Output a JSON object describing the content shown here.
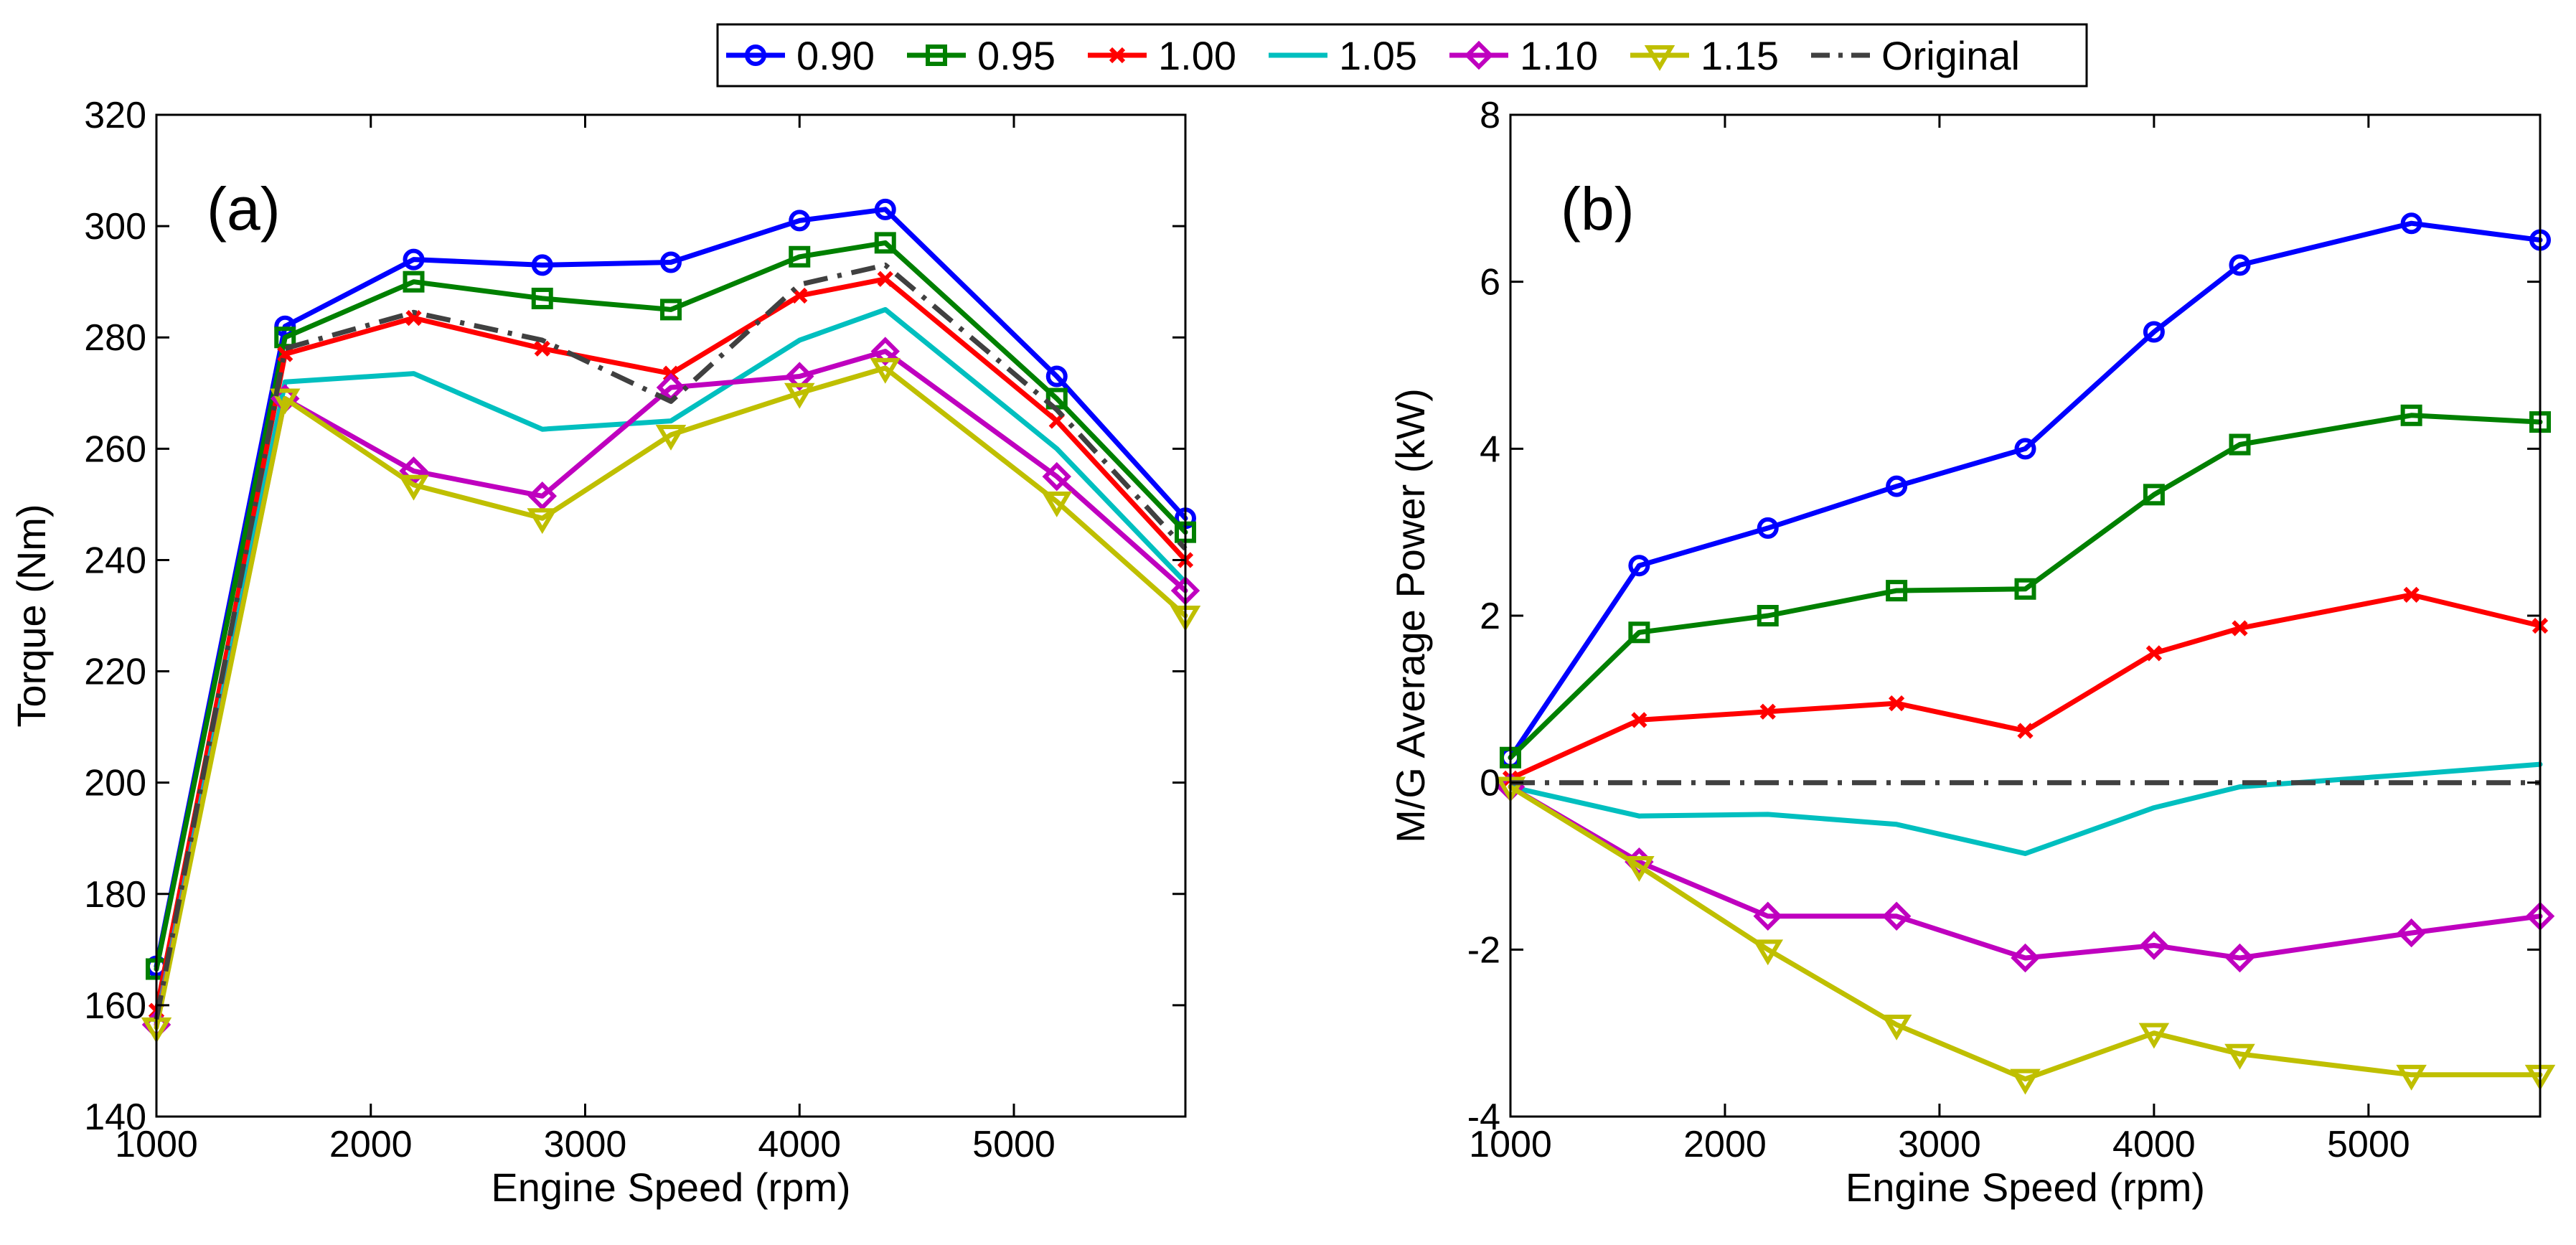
{
  "legend": {
    "entries": [
      {
        "label": "0.90",
        "color": "#0000ff",
        "marker": "circle",
        "dash": "solid"
      },
      {
        "label": "0.95",
        "color": "#008000",
        "marker": "square",
        "dash": "solid"
      },
      {
        "label": "1.00",
        "color": "#ff0000",
        "marker": "x",
        "dash": "solid"
      },
      {
        "label": "1.05",
        "color": "#00bfbf",
        "marker": "none",
        "dash": "solid"
      },
      {
        "label": "1.10",
        "color": "#bf00bf",
        "marker": "diamond",
        "dash": "solid"
      },
      {
        "label": "1.15",
        "color": "#bfbf00",
        "marker": "triangle-down",
        "dash": "solid"
      },
      {
        "label": "Original",
        "color": "#404040",
        "marker": "none",
        "dash": "dashdot"
      }
    ]
  },
  "chart_data": [
    {
      "type": "line",
      "panel_label": "(a)",
      "xlabel": "Engine Speed (rpm)",
      "ylabel": "Torque (Nm)",
      "xlim": [
        1000,
        5800
      ],
      "ylim": [
        140,
        320
      ],
      "xticks": [
        1000,
        2000,
        3000,
        4000,
        5000
      ],
      "yticks": [
        140,
        160,
        180,
        200,
        220,
        240,
        260,
        280,
        300,
        320
      ],
      "grid": false,
      "x": [
        1000,
        1600,
        2200,
        2800,
        3400,
        4000,
        4400,
        5200,
        5800
      ],
      "series": [
        {
          "name": "0.90",
          "values": [
            167,
            282,
            294,
            293,
            293.5,
            301,
            303,
            273,
            247.5
          ]
        },
        {
          "name": "0.95",
          "values": [
            166.5,
            280,
            290,
            287,
            285,
            294.5,
            297,
            269,
            245
          ]
        },
        {
          "name": "1.00",
          "values": [
            159,
            277,
            283.5,
            278,
            273.5,
            287.5,
            290.5,
            265,
            240
          ]
        },
        {
          "name": "1.05",
          "values": [
            157,
            272,
            273.5,
            263.5,
            265,
            279.5,
            285,
            260,
            236
          ]
        },
        {
          "name": "1.10",
          "values": [
            156.5,
            269,
            256,
            251.5,
            271,
            273,
            277.5,
            255,
            234.5
          ]
        },
        {
          "name": "1.15",
          "values": [
            156,
            269,
            253.5,
            247.5,
            262.5,
            270,
            274.5,
            250.5,
            230
          ]
        },
        {
          "name": "Original",
          "values": [
            157.5,
            278,
            284.5,
            279.5,
            268.5,
            289.5,
            293,
            267,
            242
          ]
        }
      ]
    },
    {
      "type": "line",
      "panel_label": "(b)",
      "xlabel": "Engine Speed (rpm)",
      "ylabel": "M/G Average Power (kW)",
      "xlim": [
        1000,
        5800
      ],
      "ylim": [
        -4,
        8
      ],
      "xticks": [
        1000,
        2000,
        3000,
        4000,
        5000
      ],
      "yticks": [
        -4,
        -2,
        0,
        2,
        4,
        6,
        8
      ],
      "grid": false,
      "x": [
        1000,
        1600,
        2200,
        2800,
        3400,
        4000,
        4400,
        5200,
        5800
      ],
      "series": [
        {
          "name": "0.90",
          "values": [
            0.3,
            2.6,
            3.05,
            3.55,
            4.0,
            5.4,
            6.2,
            6.7,
            6.5
          ]
        },
        {
          "name": "0.95",
          "values": [
            0.3,
            1.8,
            2.0,
            2.3,
            2.32,
            3.45,
            4.05,
            4.4,
            4.32
          ]
        },
        {
          "name": "1.00",
          "values": [
            0.05,
            0.75,
            0.85,
            0.95,
            0.62,
            1.55,
            1.85,
            2.25,
            1.88
          ]
        },
        {
          "name": "1.05",
          "values": [
            -0.05,
            -0.4,
            -0.38,
            -0.5,
            -0.85,
            -0.3,
            -0.05,
            0.1,
            0.22
          ]
        },
        {
          "name": "1.10",
          "values": [
            -0.05,
            -0.95,
            -1.6,
            -1.6,
            -2.1,
            -1.95,
            -2.1,
            -1.8,
            -1.6
          ]
        },
        {
          "name": "1.15",
          "values": [
            -0.05,
            -1.0,
            -2.0,
            -2.9,
            -3.55,
            -3.0,
            -3.25,
            -3.5,
            -3.5
          ]
        },
        {
          "name": "Original",
          "values": [
            0,
            0,
            0,
            0,
            0,
            0,
            0,
            0,
            0
          ]
        }
      ]
    }
  ]
}
